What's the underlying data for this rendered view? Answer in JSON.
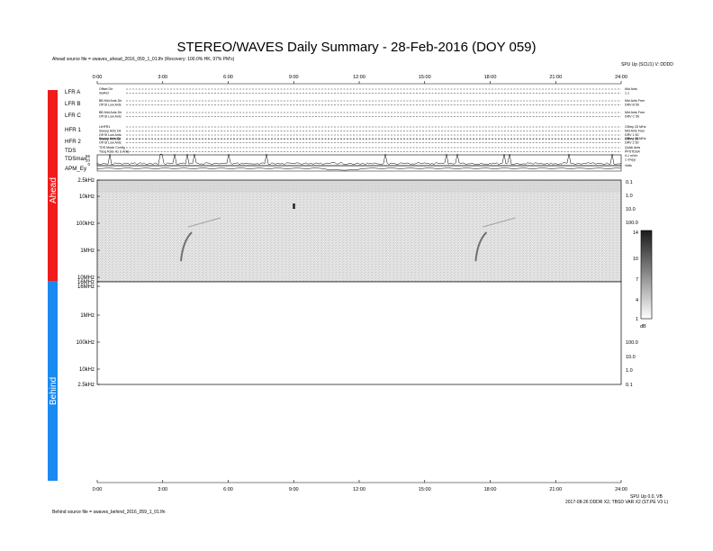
{
  "title": "STEREO/WAVES Daily Summary - 28-Feb-2016 (DOY 059)",
  "ahead_source": "Ahead source file = swaves_ahead_2016_059_1_01.lfn (Recovery: 100.0% HK, 97% PM's)",
  "behind_source": "Behind source file = swaves_behind_2016_059_1_01.lfn",
  "top_right_note": "SPU Up (SCU1) V: DDDD",
  "bottom_right_note_1": "SPU Up 0.0, VB",
  "bottom_right_note_2": "2017-08-26 DDDR X2, TBSD VAR X2 (ST.PE V3 L)",
  "time_ticks": [
    "0:00",
    "3:00",
    "6:00",
    "9:00",
    "12:00",
    "15:00",
    "18:00",
    "21:00",
    "24:00"
  ],
  "spacecraft": {
    "ahead": "Ahead",
    "behind": "Behind"
  },
  "colors": {
    "ahead": "#f01c1c",
    "behind": "#1a8af0"
  },
  "hk_rows": [
    {
      "label": "LFR A",
      "sub": [
        "Offset Dir",
        "SwRef"
      ],
      "right": [
        "Mid Ants",
        "1.1"
      ]
    },
    {
      "label": "LFR B",
      "sub": [
        "BB Mid Ants Dir",
        "Off St Low Ants"
      ],
      "right": [
        "Mid Ants Free",
        "DRV B 50"
      ]
    },
    {
      "label": "LFR C",
      "sub": [
        "BB Mid Ants Dir",
        "Off St Low Ants"
      ],
      "right": [
        "Mid Ants Free",
        "DRV C 50"
      ]
    },
    {
      "label": "HFR 1",
      "sub": [
        "LtHFR1",
        "Sweep Ants Dir",
        "Off St Low Ants",
        "Sweep Rt Ants"
      ],
      "right": [
        "OStep 25 MHz",
        "Mid Ants Free",
        "DRV 1 50",
        "DRV 1 50"
      ]
    },
    {
      "label": "HFR 2",
      "sub": [
        "Sweep Ants Dir",
        "Off St Low Ants"
      ],
      "right": [
        "OStep 25 MHz",
        "DRV 2 50"
      ]
    },
    {
      "label": "TDS",
      "sub": [
        "TDS Mode Config",
        "Tdsq Rate Hz & Ants"
      ],
      "right": [
        "Quick Ants",
        "PPSTDSA"
      ]
    },
    {
      "label": "TDSmax",
      "sub": [],
      "right": [
        "0.1 mVm",
        "1 mVpp"
      ]
    },
    {
      "label": "APM_Ey",
      "sub": [],
      "right": [
        "Volts"
      ]
    }
  ],
  "tdsmax_scale": [
    "55",
    "20",
    "0"
  ],
  "chart_data": [
    {
      "type": "heatmap",
      "panel": "Ahead",
      "xlabel": "",
      "ylabel": "",
      "x_ticks": [
        "0:00",
        "3:00",
        "6:00",
        "9:00",
        "12:00",
        "15:00",
        "18:00",
        "21:00",
        "24:00"
      ],
      "xlim": [
        0,
        24
      ],
      "y_ticks": [
        "2.5kHz",
        "10kHz",
        "100kHz",
        "1MHz",
        "10MHz",
        "16MHz"
      ],
      "y_scale": "log",
      "y_range_hz": [
        2500,
        16000000
      ],
      "right_ticks": [
        "0.1",
        "1.0",
        "10.0",
        "100.0"
      ],
      "bursts_hours": [
        4.0,
        17.5
      ],
      "spike_hours": [
        9.0
      ]
    },
    {
      "type": "heatmap",
      "panel": "Behind",
      "xlabel": "",
      "ylabel": "",
      "x_ticks": [
        "0:00",
        "3:00",
        "6:00",
        "9:00",
        "12:00",
        "15:00",
        "18:00",
        "21:00",
        "24:00"
      ],
      "xlim": [
        0,
        24
      ],
      "y_ticks": [
        "16MHz",
        "1MHz",
        "100kHz",
        "10kHz",
        "2.5kHz"
      ],
      "y_scale": "log",
      "right_ticks": [
        "100.0",
        "10.0",
        "1.0",
        "0.1"
      ],
      "values": []
    }
  ],
  "colorbar": {
    "ticks": [
      "14",
      "10",
      "7",
      "4",
      "1"
    ],
    "unit": "dB",
    "range_db": [
      1,
      14
    ]
  }
}
